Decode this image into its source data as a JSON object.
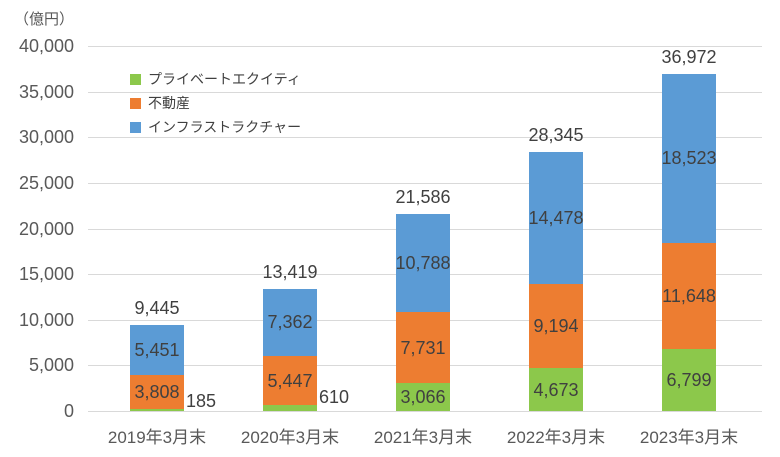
{
  "chart_data": {
    "type": "bar",
    "subtype": "stacked",
    "title": "",
    "unit_label": "（億円）",
    "xlabel": "",
    "ylabel": "（億円）",
    "ylim": [
      0,
      40000
    ],
    "y_step": 5000,
    "y_tick_labels": [
      "0",
      "5,000",
      "10,000",
      "15,000",
      "20,000",
      "25,000",
      "30,000",
      "35,000",
      "40,000"
    ],
    "grid": true,
    "legend_position": "top-left-inside",
    "categories": [
      "2019年3月末",
      "2020年3月末",
      "2021年3月末",
      "2022年3月末",
      "2023年3月末"
    ],
    "series": [
      {
        "name": "プライベートエクイティ",
        "color": "#8CC84B",
        "values": [
          185,
          610,
          3066,
          4673,
          6799
        ]
      },
      {
        "name": "不動産",
        "color": "#ED7D31",
        "values": [
          3808,
          5447,
          7731,
          9194,
          11648
        ]
      },
      {
        "name": "インフラストラクチャー",
        "color": "#5B9BD5",
        "values": [
          5451,
          7362,
          10788,
          14478,
          18523
        ]
      }
    ],
    "totals": [
      "9,445",
      "13,419",
      "21,586",
      "28,345",
      "36,972"
    ]
  },
  "colors": {
    "grid": "#D9D9D9",
    "axis_text": "#595959",
    "label_text": "#404040",
    "background": "#FFFFFF"
  }
}
